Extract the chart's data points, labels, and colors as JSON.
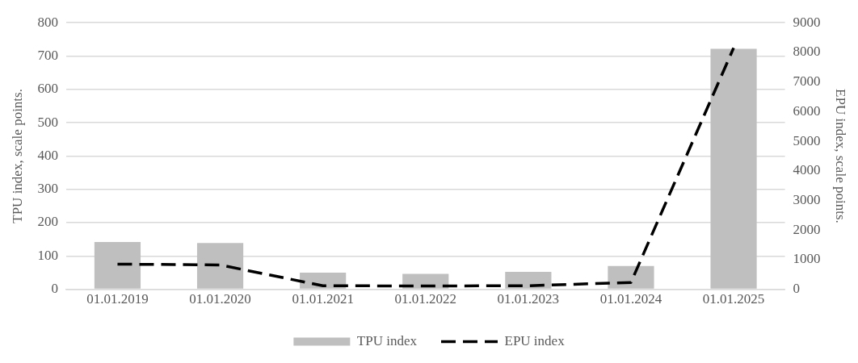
{
  "chart_data": {
    "type": "bar",
    "categories": [
      "01.01.2019",
      "01.01.2020",
      "01.01.2021",
      "01.01.2022",
      "01.01.2023",
      "01.01.2024",
      "01.01.2025"
    ],
    "ylabel": "TPU index, scale points.",
    "y2label": "EPU index, scale points.",
    "series": [
      {
        "name": "TPU index",
        "color": "#bfbfbf",
        "values": [
          142,
          139,
          50,
          46,
          52,
          70,
          722
        ]
      },
      {
        "name": "EPU index",
        "type": "line",
        "axis": "y2",
        "color": "#000000",
        "line_style": "dashed",
        "marker": "none",
        "values": [
          850,
          820,
          120,
          110,
          120,
          230,
          8150
        ]
      }
    ],
    "ylim": [
      0,
      800
    ],
    "yticks": [
      0,
      100,
      200,
      300,
      400,
      500,
      600,
      700,
      800
    ],
    "y2lim": [
      0,
      9000
    ],
    "y2ticks": [
      0,
      1000,
      2000,
      3000,
      4000,
      5000,
      6000,
      7000,
      8000,
      9000
    ],
    "grid": "y",
    "legend": "bottom"
  }
}
